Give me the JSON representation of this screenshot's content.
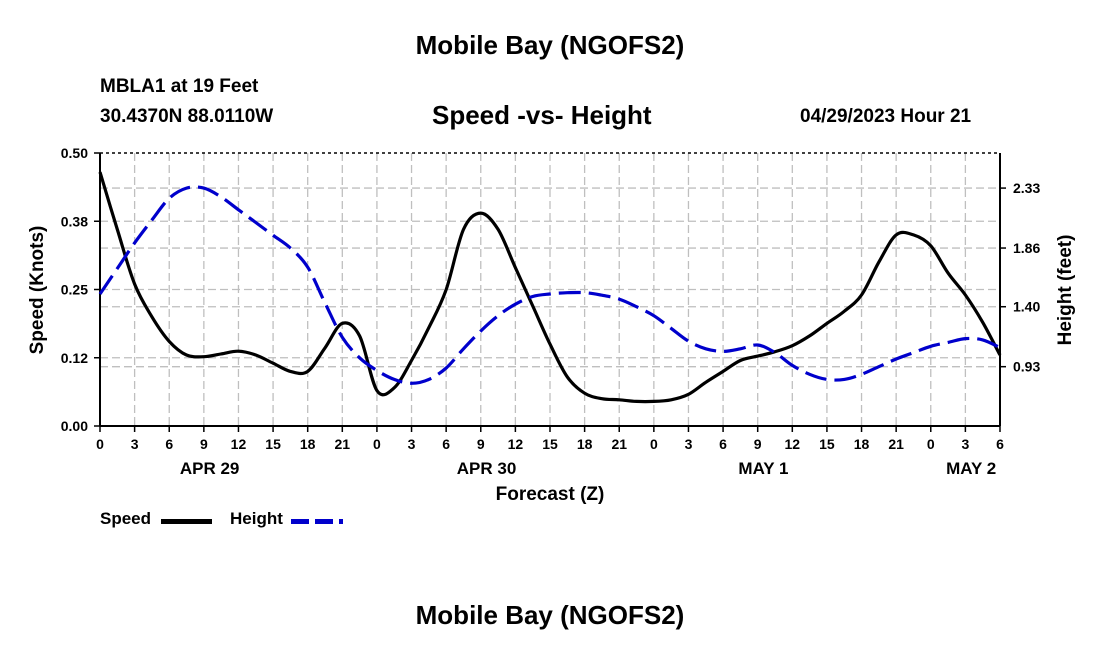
{
  "header": {
    "title": "Mobile Bay (NGOFS2)",
    "station": "MBLA1 at 19 Feet",
    "coords": "30.4370N  88.0110W",
    "subtitle": "Speed -vs- Height",
    "timestamp": "04/29/2023 Hour 21"
  },
  "footer": {
    "title": "Mobile Bay (NGOFS2)"
  },
  "legend": {
    "speed_label": "Speed",
    "height_label": "Height"
  },
  "chart_data": {
    "type": "line",
    "title": "Speed -vs- Height",
    "xlabel": "Forecast (Z)",
    "ylabel": "Speed (Knots)",
    "y2label": "Height (feet)",
    "xlim": [
      0,
      78
    ],
    "ylim": [
      0,
      0.5
    ],
    "y2lim": [
      0.465,
      2.605
    ],
    "x_ticks": [
      0,
      3,
      6,
      9,
      12,
      15,
      18,
      21,
      24,
      27,
      30,
      33,
      36,
      39,
      42,
      45,
      48,
      51,
      54,
      57,
      60,
      63,
      66,
      69,
      72,
      75,
      78
    ],
    "x_tick_labels": [
      "0",
      "3",
      "6",
      "9",
      "12",
      "15",
      "18",
      "21",
      "0",
      "3",
      "6",
      "9",
      "12",
      "15",
      "18",
      "21",
      "0",
      "3",
      "6",
      "9",
      "12",
      "15",
      "18",
      "21",
      "0",
      "3",
      "6"
    ],
    "y_ticks": [
      0,
      0.125,
      0.25,
      0.375,
      0.5
    ],
    "y_tick_labels": [
      "0.00",
      "0.12",
      "0.25",
      "0.38",
      "0.50"
    ],
    "y2_ticks": [
      0.93,
      1.4,
      1.86,
      2.33
    ],
    "y2_tick_labels": [
      "0.93",
      "1.40",
      "1.86",
      "2.33"
    ],
    "date_labels": [
      {
        "x": 9.5,
        "label": "APR 29"
      },
      {
        "x": 33.5,
        "label": "APR 30"
      },
      {
        "x": 57.5,
        "label": "MAY 1"
      },
      {
        "x": 75.5,
        "label": "MAY 2"
      }
    ],
    "grid": true,
    "series": [
      {
        "name": "Speed",
        "axis": "left",
        "color": "#000000",
        "style": "solid",
        "x": [
          0,
          1.5,
          3,
          4.5,
          6,
          7.5,
          9,
          10.5,
          12,
          13.5,
          15,
          16.5,
          18,
          19.5,
          21,
          22.5,
          24,
          25.5,
          27,
          28.5,
          30,
          31.5,
          33,
          34.5,
          36,
          37.5,
          39,
          40.5,
          42,
          43.5,
          45,
          46.5,
          48,
          49.5,
          51,
          52.5,
          54,
          55.5,
          57,
          58.5,
          60,
          61.5,
          63,
          64.5,
          66,
          67.5,
          69,
          70.5,
          72,
          73.5,
          75,
          76.5,
          78
        ],
        "values": [
          0.465,
          0.36,
          0.26,
          0.2,
          0.155,
          0.13,
          0.127,
          0.132,
          0.137,
          0.13,
          0.115,
          0.1,
          0.1,
          0.143,
          0.188,
          0.165,
          0.065,
          0.07,
          0.12,
          0.18,
          0.25,
          0.36,
          0.39,
          0.36,
          0.29,
          0.22,
          0.15,
          0.09,
          0.06,
          0.05,
          0.048,
          0.045,
          0.045,
          0.048,
          0.058,
          0.08,
          0.1,
          0.12,
          0.128,
          0.136,
          0.147,
          0.165,
          0.188,
          0.21,
          0.24,
          0.3,
          0.35,
          0.35,
          0.33,
          0.28,
          0.24,
          0.19,
          0.13
        ]
      },
      {
        "name": "Height",
        "axis": "right",
        "color": "#0000cc",
        "style": "dashed",
        "x": [
          0,
          1.5,
          3,
          4.5,
          6,
          7.5,
          9,
          10.5,
          12,
          13.5,
          15,
          16.5,
          18,
          19.5,
          21,
          22.5,
          24,
          25.5,
          27,
          28.5,
          30,
          31.5,
          33,
          34.5,
          36,
          37.5,
          39,
          40.5,
          42,
          43.5,
          45,
          46.5,
          48,
          49.5,
          51,
          52.5,
          54,
          55.5,
          57,
          58.5,
          60,
          61.5,
          63,
          64.5,
          66,
          67.5,
          69,
          70.5,
          72,
          73.5,
          75,
          76.5,
          78
        ],
        "values": [
          1.5,
          1.7,
          1.9,
          2.08,
          2.25,
          2.33,
          2.33,
          2.26,
          2.16,
          2.06,
          1.96,
          1.86,
          1.71,
          1.43,
          1.16,
          1.0,
          0.9,
          0.83,
          0.8,
          0.83,
          0.92,
          1.07,
          1.21,
          1.33,
          1.42,
          1.48,
          1.5,
          1.51,
          1.51,
          1.49,
          1.46,
          1.4,
          1.33,
          1.23,
          1.13,
          1.07,
          1.05,
          1.07,
          1.1,
          1.04,
          0.94,
          0.87,
          0.83,
          0.83,
          0.87,
          0.93,
          0.99,
          1.04,
          1.09,
          1.12,
          1.15,
          1.14,
          1.08
        ]
      }
    ]
  }
}
